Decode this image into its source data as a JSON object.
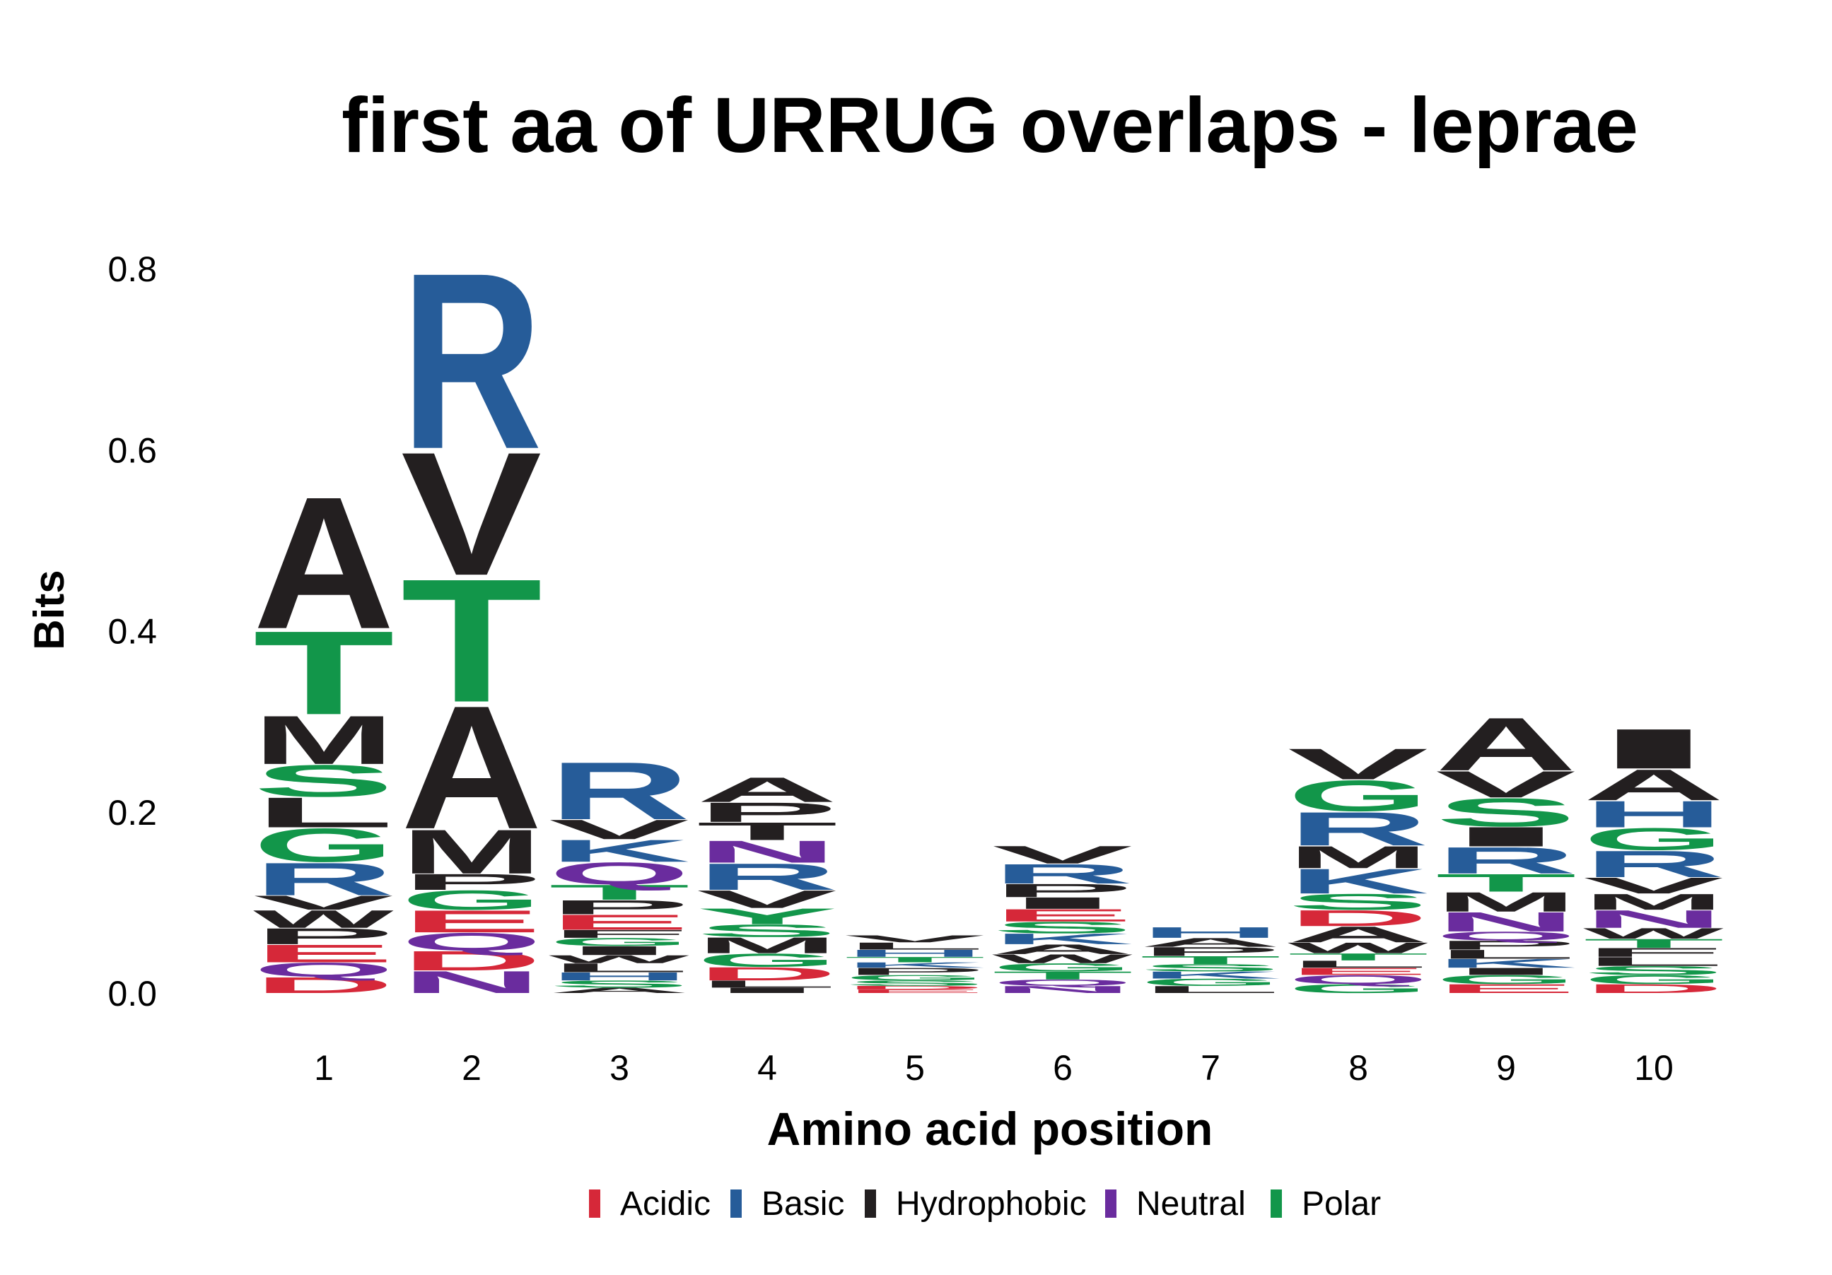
{
  "chart_data": {
    "type": "sequence-logo",
    "title": "first aa of URRUG overlaps - leprae",
    "xlabel": "Amino acid position",
    "ylabel": "Bits",
    "ylim": [
      0,
      0.85
    ],
    "yticks": [
      0.0,
      0.2,
      0.4,
      0.6,
      0.8
    ],
    "ytick_labels": [
      "0.0",
      "0.2",
      "0.4",
      "0.6",
      "0.8"
    ],
    "positions": [
      "1",
      "2",
      "3",
      "4",
      "5",
      "6",
      "7",
      "8",
      "9",
      "10"
    ],
    "grid": false,
    "legend_position": "bottom",
    "colors": {
      "Acidic": "#d62839",
      "Basic": "#265c99",
      "Hydrophobic": "#231f20",
      "Neutral": "#6a2c9e",
      "Polar": "#12964a"
    },
    "legend": [
      "Acidic",
      "Basic",
      "Hydrophobic",
      "Neutral",
      "Polar"
    ],
    "stacks": [
      [
        [
          "D",
          0.018,
          "Acidic"
        ],
        [
          "Q",
          0.016,
          "Neutral"
        ],
        [
          "E",
          0.02,
          "Acidic"
        ],
        [
          "P",
          0.018,
          "Hydrophobic"
        ],
        [
          "W",
          0.02,
          "Hydrophobic"
        ],
        [
          "V",
          0.016,
          "Hydrophobic"
        ],
        [
          "R",
          0.037,
          "Basic"
        ],
        [
          "G",
          0.038,
          "Polar"
        ],
        [
          "L",
          0.034,
          "Hydrophobic"
        ],
        [
          "S",
          0.036,
          "Polar"
        ],
        [
          "M",
          0.055,
          "Hydrophobic"
        ],
        [
          "T",
          0.095,
          "Polar"
        ],
        [
          "A",
          0.15,
          "Hydrophobic"
        ]
      ],
      [
        [
          "N",
          0.025,
          "Neutral"
        ],
        [
          "D",
          0.022,
          "Acidic"
        ],
        [
          "Q",
          0.02,
          "Neutral"
        ],
        [
          "E",
          0.025,
          "Acidic"
        ],
        [
          "G",
          0.022,
          "Polar"
        ],
        [
          "P",
          0.018,
          "Hydrophobic"
        ],
        [
          "M",
          0.05,
          "Hydrophobic"
        ],
        [
          "A",
          0.14,
          "Hydrophobic"
        ],
        [
          "T",
          0.14,
          "Polar"
        ],
        [
          "V",
          0.14,
          "Hydrophobic"
        ],
        [
          "R",
          0.2,
          "Basic"
        ]
      ],
      [
        [
          "A",
          0.006,
          "Hydrophobic"
        ],
        [
          "S",
          0.008,
          "Polar"
        ],
        [
          "H",
          0.009,
          "Basic"
        ],
        [
          "L",
          0.01,
          "Hydrophobic"
        ],
        [
          "W",
          0.009,
          "Hydrophobic"
        ],
        [
          "I",
          0.01,
          "Hydrophobic"
        ],
        [
          "G",
          0.009,
          "Polar"
        ],
        [
          "F",
          0.009,
          "Hydrophobic"
        ],
        [
          "E",
          0.017,
          "Acidic"
        ],
        [
          "P",
          0.016,
          "Hydrophobic"
        ],
        [
          "T",
          0.017,
          "Polar"
        ],
        [
          "Q",
          0.025,
          "Neutral"
        ],
        [
          "K",
          0.025,
          "Basic"
        ],
        [
          "V",
          0.022,
          "Hydrophobic"
        ],
        [
          "R",
          0.065,
          "Basic"
        ]
      ],
      [
        [
          "I",
          0.006,
          "Hydrophobic"
        ],
        [
          "L",
          0.008,
          "Hydrophobic"
        ],
        [
          "D",
          0.015,
          "Acidic"
        ],
        [
          "G",
          0.015,
          "Polar"
        ],
        [
          "M",
          0.018,
          "Hydrophobic"
        ],
        [
          "S",
          0.014,
          "Polar"
        ],
        [
          "Y",
          0.018,
          "Polar"
        ],
        [
          "V",
          0.02,
          "Hydrophobic"
        ],
        [
          "R",
          0.03,
          "Basic"
        ],
        [
          "N",
          0.025,
          "Neutral"
        ],
        [
          "T",
          0.02,
          "Hydrophobic"
        ],
        [
          "P",
          0.022,
          "Hydrophobic"
        ],
        [
          "A",
          0.028,
          "Hydrophobic"
        ]
      ],
      [
        [
          "E",
          0.004,
          "Acidic"
        ],
        [
          "D",
          0.004,
          "Acidic"
        ],
        [
          "S",
          0.006,
          "Polar"
        ],
        [
          "G",
          0.006,
          "Polar"
        ],
        [
          "P",
          0.008,
          "Hydrophobic"
        ],
        [
          "K",
          0.006,
          "Basic"
        ],
        [
          "T",
          0.006,
          "Polar"
        ],
        [
          "H",
          0.008,
          "Basic"
        ],
        [
          "L",
          0.008,
          "Hydrophobic"
        ],
        [
          "V",
          0.008,
          "Hydrophobic"
        ]
      ],
      [
        [
          "N",
          0.008,
          "Neutral"
        ],
        [
          "Q",
          0.007,
          "Neutral"
        ],
        [
          "T",
          0.009,
          "Polar"
        ],
        [
          "G",
          0.009,
          "Polar"
        ],
        [
          "W",
          0.01,
          "Hydrophobic"
        ],
        [
          "A",
          0.011,
          "Hydrophobic"
        ],
        [
          "K",
          0.012,
          "Basic"
        ],
        [
          "S",
          0.013,
          "Polar"
        ],
        [
          "E",
          0.014,
          "Acidic"
        ],
        [
          "I",
          0.013,
          "Hydrophobic"
        ],
        [
          "P",
          0.015,
          "Hydrophobic"
        ],
        [
          "R",
          0.022,
          "Basic"
        ],
        [
          "V",
          0.02,
          "Hydrophobic"
        ]
      ],
      [
        [
          "L",
          0.008,
          "Hydrophobic"
        ],
        [
          "G",
          0.008,
          "Polar"
        ],
        [
          "K",
          0.008,
          "Basic"
        ],
        [
          "S",
          0.008,
          "Polar"
        ],
        [
          "T",
          0.009,
          "Polar"
        ],
        [
          "P",
          0.01,
          "Hydrophobic"
        ],
        [
          "A",
          0.01,
          "Hydrophobic"
        ],
        [
          "H",
          0.012,
          "Basic"
        ]
      ],
      [
        [
          "G",
          0.01,
          "Polar"
        ],
        [
          "Q",
          0.01,
          "Neutral"
        ],
        [
          "E",
          0.008,
          "Acidic"
        ],
        [
          "L",
          0.008,
          "Hydrophobic"
        ],
        [
          "T",
          0.008,
          "Polar"
        ],
        [
          "W",
          0.012,
          "Hydrophobic"
        ],
        [
          "A",
          0.018,
          "Hydrophobic"
        ],
        [
          "D",
          0.018,
          "Acidic"
        ],
        [
          "S",
          0.018,
          "Polar"
        ],
        [
          "K",
          0.028,
          "Basic"
        ],
        [
          "M",
          0.025,
          "Hydrophobic"
        ],
        [
          "R",
          0.038,
          "Basic"
        ],
        [
          "G",
          0.035,
          "Polar"
        ],
        [
          "V",
          0.035,
          "Hydrophobic"
        ]
      ],
      [
        [
          "E",
          0.01,
          "Acidic"
        ],
        [
          "G",
          0.01,
          "Polar"
        ],
        [
          "I",
          0.008,
          "Hydrophobic"
        ],
        [
          "K",
          0.01,
          "Basic"
        ],
        [
          "L",
          0.01,
          "Hydrophobic"
        ],
        [
          "P",
          0.01,
          "Hydrophobic"
        ],
        [
          "Q",
          0.01,
          "Neutral"
        ],
        [
          "N",
          0.022,
          "Neutral"
        ],
        [
          "M",
          0.022,
          "Hydrophobic"
        ],
        [
          "T",
          0.02,
          "Polar"
        ],
        [
          "R",
          0.03,
          "Basic"
        ],
        [
          "I",
          0.022,
          "Hydrophobic"
        ],
        [
          "S",
          0.032,
          "Polar"
        ],
        [
          "V",
          0.03,
          "Hydrophobic"
        ],
        [
          "A",
          0.06,
          "Hydrophobic"
        ]
      ],
      [
        [
          "D",
          0.01,
          "Acidic"
        ],
        [
          "G",
          0.01,
          "Polar"
        ],
        [
          "S",
          0.01,
          "Polar"
        ],
        [
          "L",
          0.01,
          "Hydrophobic"
        ],
        [
          "F",
          0.01,
          "Hydrophobic"
        ],
        [
          "T",
          0.01,
          "Polar"
        ],
        [
          "W",
          0.012,
          "Hydrophobic"
        ],
        [
          "N",
          0.02,
          "Neutral"
        ],
        [
          "M",
          0.018,
          "Hydrophobic"
        ],
        [
          "V",
          0.018,
          "Hydrophobic"
        ],
        [
          "R",
          0.03,
          "Basic"
        ],
        [
          "G",
          0.025,
          "Polar"
        ],
        [
          "H",
          0.03,
          "Basic"
        ],
        [
          "A",
          0.035,
          "Hydrophobic"
        ],
        [
          "I",
          0.045,
          "Hydrophobic"
        ]
      ]
    ]
  }
}
